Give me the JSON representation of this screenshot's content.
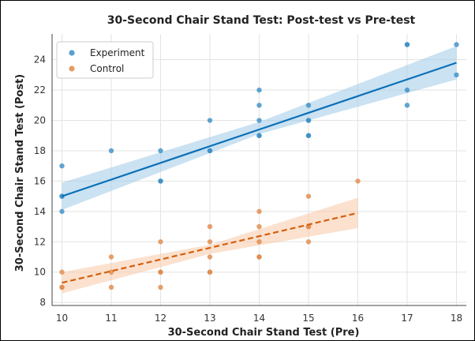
{
  "chart_data": {
    "type": "scatter",
    "title": "30-Second Chair Stand Test: Post-test vs Pre-test",
    "xlabel": "30-Second Chair Stand Test (Pre)",
    "ylabel": "30-Second Chair Stand Test (Post)",
    "xlim": [
      9.8,
      18.2
    ],
    "ylim": [
      7.8,
      25.7
    ],
    "xticks": [
      10,
      11,
      12,
      13,
      14,
      15,
      16,
      17,
      18
    ],
    "yticks": [
      8,
      10,
      12,
      14,
      16,
      18,
      20,
      22,
      24
    ],
    "grid": true,
    "legend_position": "top-left",
    "series": [
      {
        "name": "Experiment",
        "color": "#3a8fc7",
        "line_color": "#0a6fb8",
        "band_color": "#9ecae8",
        "line_style": "solid",
        "points": [
          [
            10,
            17
          ],
          [
            10,
            15
          ],
          [
            10,
            15
          ],
          [
            10,
            14
          ],
          [
            11,
            18
          ],
          [
            12,
            18
          ],
          [
            12,
            16
          ],
          [
            12,
            16
          ],
          [
            13,
            20
          ],
          [
            13,
            18
          ],
          [
            13,
            18
          ],
          [
            14,
            22
          ],
          [
            14,
            21
          ],
          [
            14,
            20
          ],
          [
            14,
            19
          ],
          [
            14,
            19
          ],
          [
            15,
            21
          ],
          [
            15,
            20
          ],
          [
            15,
            20
          ],
          [
            15,
            19
          ],
          [
            15,
            19
          ],
          [
            17,
            25
          ],
          [
            17,
            25
          ],
          [
            17,
            22
          ],
          [
            17,
            21
          ],
          [
            18,
            25
          ],
          [
            18,
            23
          ]
        ],
        "fit": {
          "x": [
            10,
            18
          ],
          "y": [
            15.0,
            23.8
          ]
        },
        "ci_low": {
          "x": [
            10,
            14,
            18
          ],
          "y": [
            14.1,
            19.1,
            22.7
          ]
        },
        "ci_high": {
          "x": [
            10,
            14,
            18
          ],
          "y": [
            15.9,
            19.9,
            24.9
          ]
        }
      },
      {
        "name": "Control",
        "color": "#e08a4a",
        "line_color": "#d4600e",
        "band_color": "#f7c9a6",
        "line_style": "dashed",
        "points": [
          [
            10,
            10
          ],
          [
            10,
            9
          ],
          [
            10,
            9
          ],
          [
            11,
            11
          ],
          [
            11,
            10
          ],
          [
            11,
            9
          ],
          [
            12,
            12
          ],
          [
            12,
            10
          ],
          [
            12,
            10
          ],
          [
            12,
            9
          ],
          [
            13,
            13
          ],
          [
            13,
            12
          ],
          [
            13,
            11
          ],
          [
            13,
            10
          ],
          [
            13,
            10
          ],
          [
            14,
            14
          ],
          [
            14,
            13
          ],
          [
            14,
            12
          ],
          [
            14,
            11
          ],
          [
            14,
            11
          ],
          [
            15,
            15
          ],
          [
            15,
            13
          ],
          [
            15,
            13
          ],
          [
            15,
            12
          ],
          [
            16,
            16
          ]
        ],
        "fit": {
          "x": [
            10,
            16
          ],
          "y": [
            9.3,
            13.9
          ]
        },
        "ci_low": {
          "x": [
            10,
            13,
            16
          ],
          "y": [
            8.6,
            11.2,
            12.9
          ]
        },
        "ci_high": {
          "x": [
            10,
            13,
            16
          ],
          "y": [
            10.0,
            11.8,
            14.9
          ]
        }
      }
    ]
  }
}
